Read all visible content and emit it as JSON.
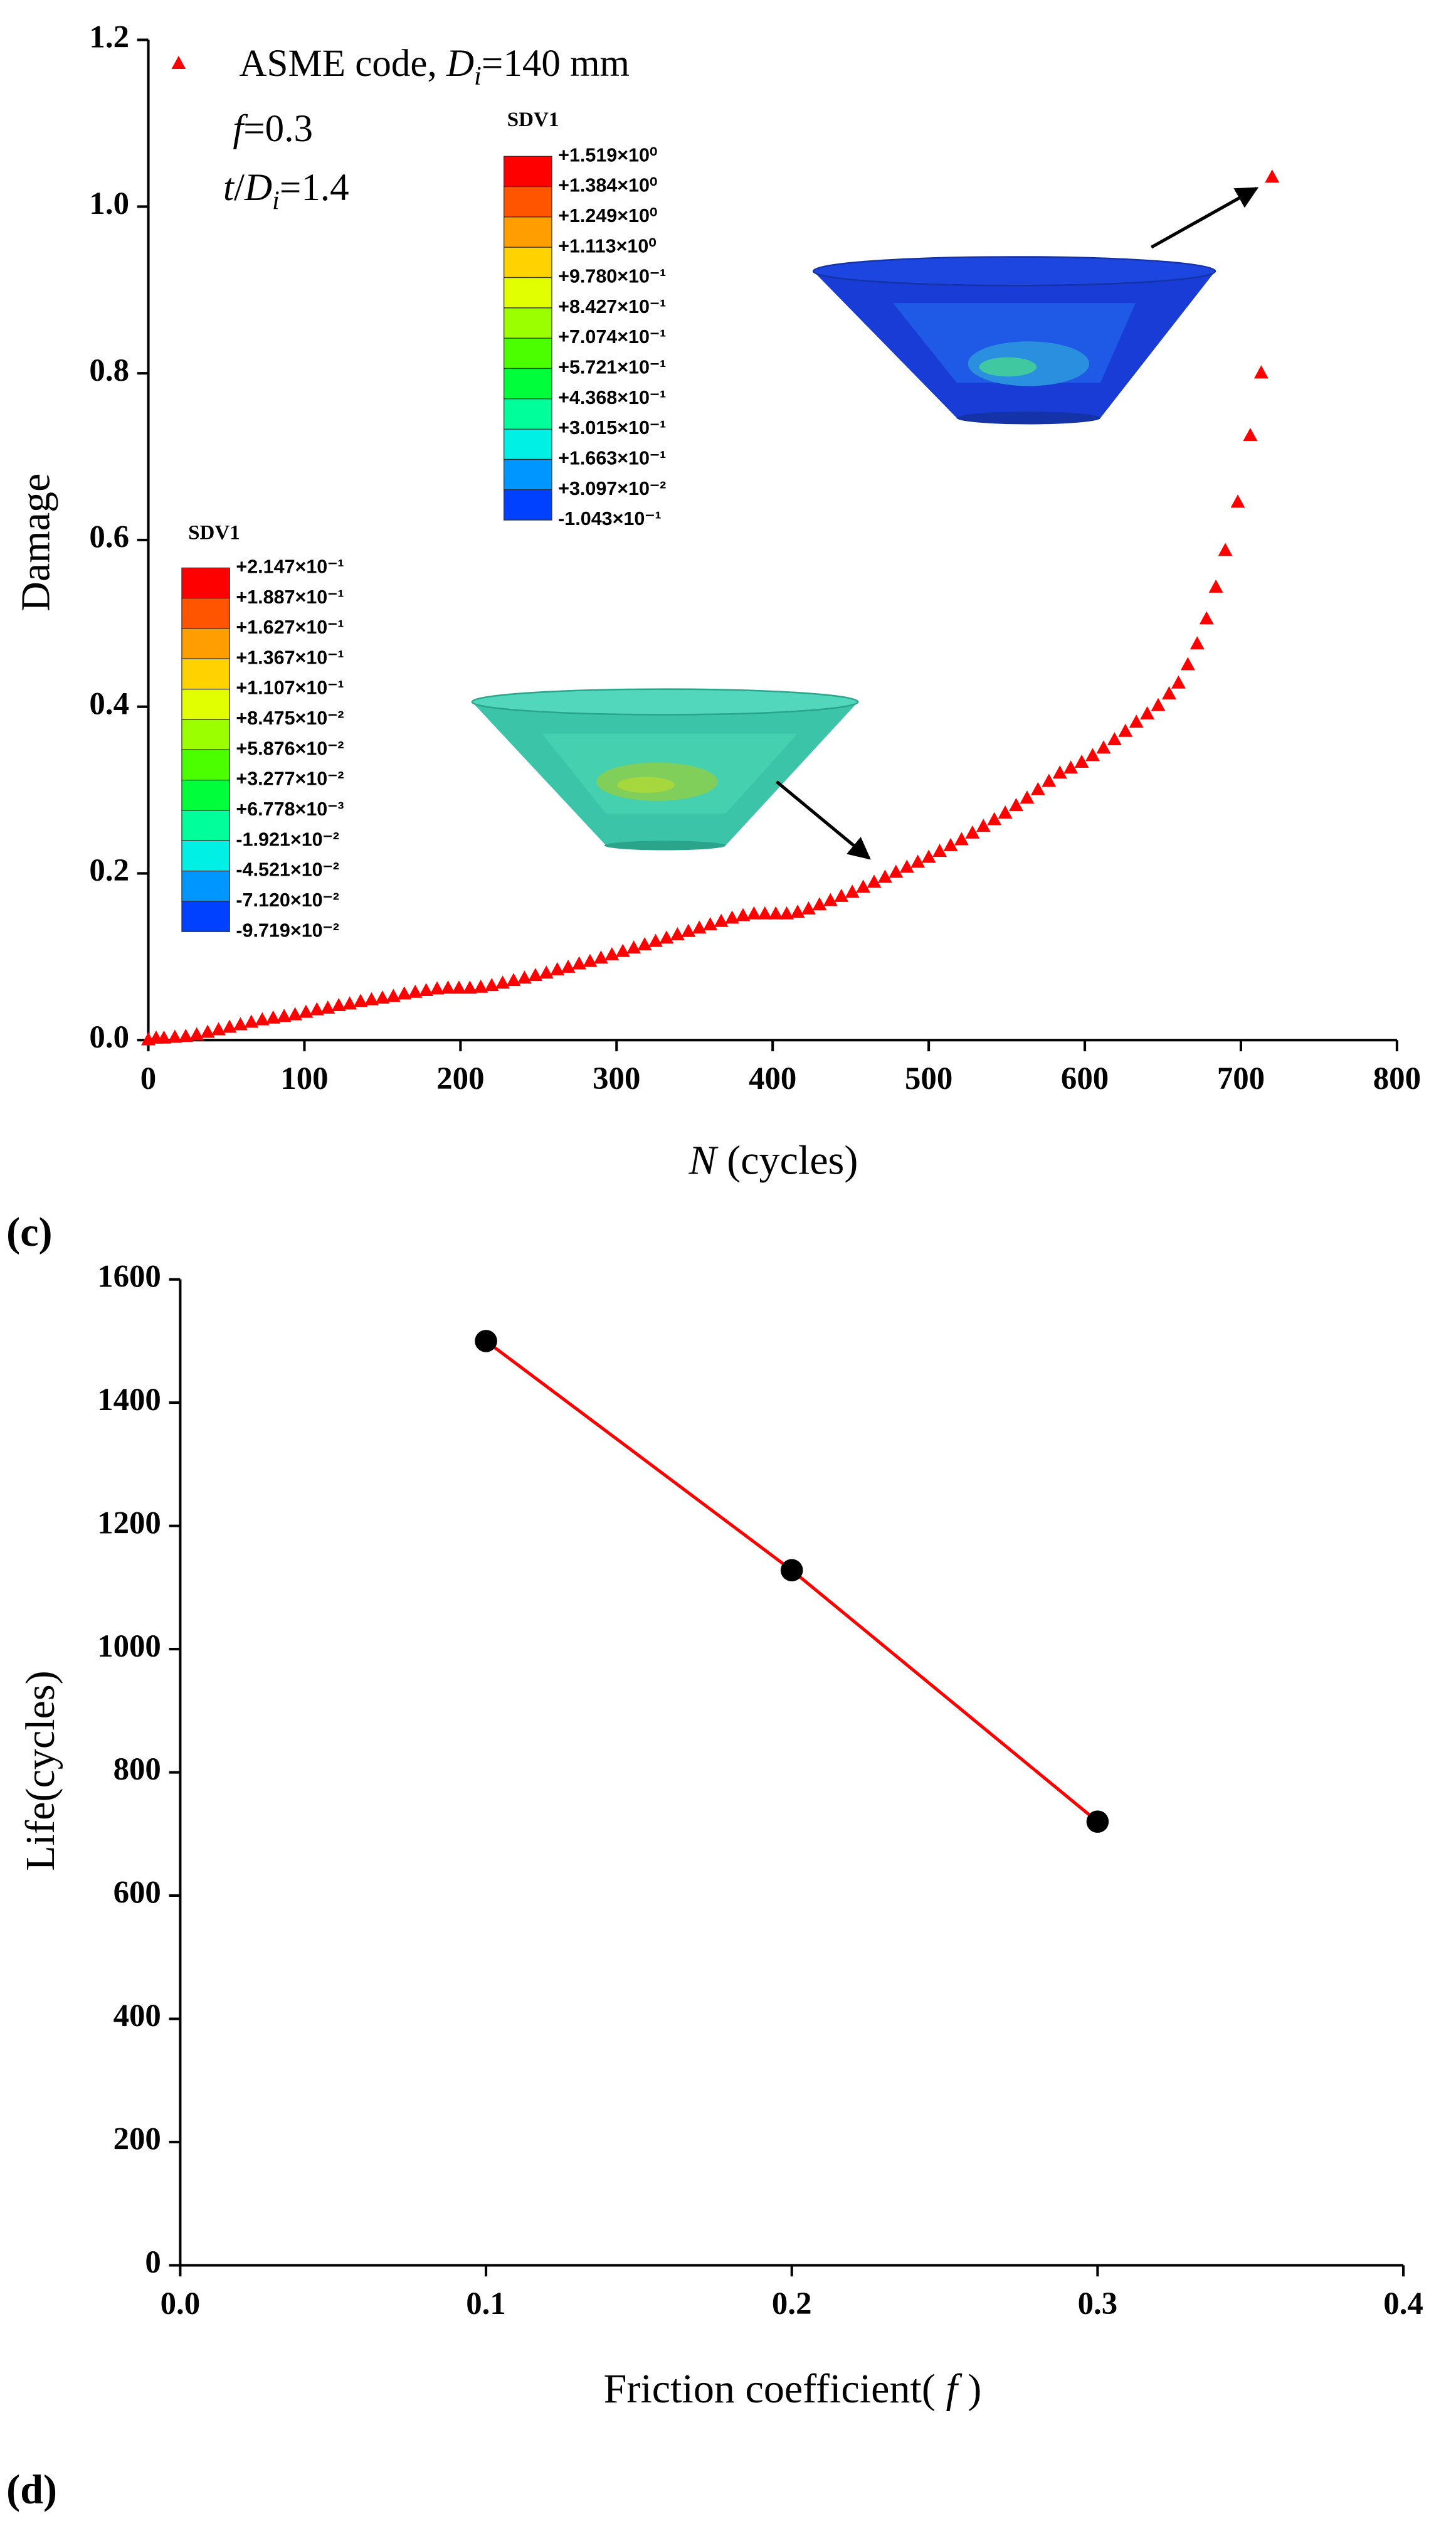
{
  "chart_data": [
    {
      "type": "scatter",
      "panel": "",
      "x": [
        0,
        5,
        10,
        17,
        24,
        31,
        38,
        45,
        52,
        59,
        66,
        73,
        80,
        87,
        94,
        101,
        108,
        115,
        122,
        129,
        136,
        143,
        150,
        157,
        164,
        171,
        178,
        185,
        192,
        199,
        206,
        213,
        220,
        227,
        234,
        241,
        248,
        255,
        262,
        269,
        276,
        283,
        290,
        297,
        304,
        311,
        318,
        325,
        332,
        339,
        346,
        353,
        360,
        367,
        374,
        381,
        388,
        395,
        402,
        409,
        416,
        423,
        430,
        437,
        444,
        451,
        458,
        465,
        472,
        479,
        486,
        493,
        500,
        507,
        514,
        521,
        528,
        535,
        542,
        549,
        556,
        563,
        570,
        577,
        584,
        591,
        598,
        605,
        612,
        619,
        626,
        633,
        640,
        647,
        654,
        660,
        666,
        672,
        678,
        684,
        690,
        698,
        706,
        713,
        720
      ],
      "series": [
        {
          "name": [
            {
              "text": "ASME code, "
            },
            {
              "text": "D",
              "style": "italic"
            },
            {
              "text": "i",
              "style": "italic-sub"
            },
            {
              "text": "=140 mm"
            }
          ],
          "color": "#ff0000",
          "marker": "triangle",
          "values": [
            0.0,
            0.002,
            0.002,
            0.003,
            0.004,
            0.006,
            0.009,
            0.012,
            0.015,
            0.018,
            0.021,
            0.024,
            0.026,
            0.028,
            0.03,
            0.033,
            0.036,
            0.038,
            0.041,
            0.043,
            0.046,
            0.048,
            0.05,
            0.052,
            0.055,
            0.057,
            0.059,
            0.061,
            0.062,
            0.062,
            0.062,
            0.063,
            0.065,
            0.068,
            0.071,
            0.074,
            0.077,
            0.08,
            0.084,
            0.087,
            0.091,
            0.094,
            0.098,
            0.102,
            0.106,
            0.11,
            0.114,
            0.118,
            0.122,
            0.126,
            0.13,
            0.134,
            0.138,
            0.142,
            0.146,
            0.149,
            0.151,
            0.151,
            0.151,
            0.151,
            0.153,
            0.157,
            0.162,
            0.167,
            0.172,
            0.177,
            0.183,
            0.189,
            0.195,
            0.201,
            0.207,
            0.213,
            0.219,
            0.226,
            0.233,
            0.24,
            0.248,
            0.256,
            0.264,
            0.272,
            0.281,
            0.29,
            0.3,
            0.31,
            0.32,
            0.326,
            0.333,
            0.341,
            0.35,
            0.36,
            0.37,
            0.381,
            0.391,
            0.401,
            0.415,
            0.428,
            0.45,
            0.475,
            0.505,
            0.543,
            0.587,
            0.645,
            0.725,
            0.8,
            1.035
          ]
        }
      ],
      "annotations": [
        [
          {
            "text": "f",
            "style": "italic"
          },
          {
            "text": "=0.3"
          }
        ],
        [
          {
            "text": "t",
            "style": "italic"
          },
          {
            "text": "/"
          },
          {
            "text": "D",
            "style": "italic"
          },
          {
            "text": "i",
            "style": "italic-sub"
          },
          {
            "text": "=1.4"
          }
        ]
      ],
      "insets": [
        {
          "title": "SDV1",
          "labels": [
            "+1.519×10⁰",
            "+1.384×10⁰",
            "+1.249×10⁰",
            "+1.113×10⁰",
            "+9.780×10⁻¹",
            "+8.427×10⁻¹",
            "+7.074×10⁻¹",
            "+5.721×10⁻¹",
            "+4.368×10⁻¹",
            "+3.015×10⁻¹",
            "+1.663×10⁻¹",
            "+3.097×10⁻²",
            "-1.043×10⁻¹"
          ]
        },
        {
          "title": "SDV1",
          "labels": [
            "+2.147×10⁻¹",
            "+1.887×10⁻¹",
            "+1.627×10⁻¹",
            "+1.367×10⁻¹",
            "+1.107×10⁻¹",
            "+8.475×10⁻²",
            "+5.876×10⁻²",
            "+3.277×10⁻²",
            "+6.778×10⁻³",
            "-1.921×10⁻²",
            "-4.521×10⁻²",
            "-7.120×10⁻²",
            "-9.719×10⁻²"
          ]
        }
      ],
      "xlabel": [
        {
          "text": "N",
          "style": "italic"
        },
        {
          "text": " (cycles)"
        }
      ],
      "ylabel": [
        {
          "text": "Damage"
        }
      ],
      "xlim": [
        0,
        800
      ],
      "xticks": [
        0,
        100,
        200,
        300,
        400,
        500,
        600,
        700,
        800
      ],
      "ylim": [
        0,
        1.2
      ],
      "yticks": [
        {
          "value": 0,
          "label": "0.0"
        },
        {
          "value": 0.2,
          "label": "0.2"
        },
        {
          "value": 0.4,
          "label": "0.4"
        },
        {
          "value": 0.6,
          "label": "0.6"
        },
        {
          "value": 0.8,
          "label": "0.8"
        },
        {
          "value": 1,
          "label": "1.0"
        },
        {
          "value": 1.2,
          "label": "1.2"
        }
      ],
      "bottom_label": "(c)"
    },
    {
      "type": "line",
      "x": [
        0.1,
        0.2,
        0.3
      ],
      "series": [
        {
          "color": "#ff0000",
          "marker_color": "#000000",
          "values": [
            1500,
            1128,
            720
          ]
        }
      ],
      "xlabel": [
        {
          "text": "Friction coefficient( "
        },
        {
          "text": "f",
          "style": "italic"
        },
        {
          "text": " )"
        }
      ],
      "ylabel": [
        {
          "text": "Life(cycles)"
        }
      ],
      "xlim": [
        0,
        0.4
      ],
      "xticks": [
        {
          "value": 0,
          "label": "0.0"
        },
        {
          "value": 0.1,
          "label": "0.1"
        },
        {
          "value": 0.2,
          "label": "0.2"
        },
        {
          "value": 0.3,
          "label": "0.3"
        },
        {
          "value": 0.4,
          "label": "0.4"
        }
      ],
      "ylim": [
        0,
        1600
      ],
      "yticks": [
        0,
        200,
        400,
        600,
        800,
        1000,
        1200,
        1400,
        1600
      ],
      "bottom_label": "(d)"
    }
  ]
}
